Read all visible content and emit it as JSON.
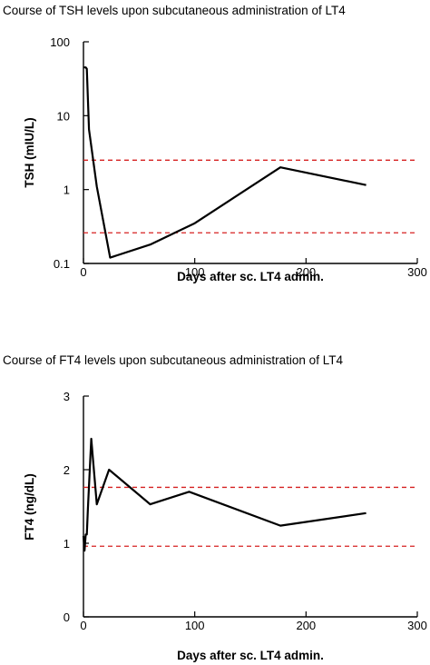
{
  "chart_data": [
    {
      "type": "line",
      "title": "Course of TSH levels upon subcutaneous administration of LT4",
      "xlabel": "Days after sc. LT4 admin.",
      "ylabel": "TSH (mIU/L)",
      "yscale": "log",
      "xlim": [
        0,
        300
      ],
      "ylim": [
        0.1,
        100
      ],
      "xticks": [
        0,
        100,
        200,
        300
      ],
      "xtick_labels": [
        "0",
        "100",
        "200",
        "300"
      ],
      "yticks": [
        0.1,
        1,
        10,
        100
      ],
      "ytick_labels": [
        "0.1",
        "1",
        "10",
        "100"
      ],
      "grid": false,
      "series": [
        {
          "color": "#000000",
          "style": "solid",
          "x": [
            0,
            2,
            3,
            5,
            12,
            24,
            60,
            100,
            177,
            254
          ],
          "y": [
            45,
            45,
            43,
            6.5,
            1.1,
            0.12,
            0.18,
            0.35,
            2.0,
            1.15
          ]
        }
      ],
      "reference_lines": [
        {
          "y": 2.5,
          "color": "#d62020",
          "style": "dashed"
        },
        {
          "y": 0.26,
          "color": "#d62020",
          "style": "dashed"
        }
      ]
    },
    {
      "type": "line",
      "title": "Course of FT4 levels upon subcutaneous administration of LT4",
      "xlabel": "Days after sc. LT4 admin.",
      "ylabel": "FT4 (ng/dL)",
      "yscale": "linear",
      "xlim": [
        0,
        300
      ],
      "ylim": [
        0,
        3
      ],
      "xticks": [
        0,
        100,
        200,
        300
      ],
      "xtick_labels": [
        "0",
        "100",
        "200",
        "300"
      ],
      "yticks": [
        0,
        1,
        2,
        3
      ],
      "ytick_labels": [
        "0",
        "1",
        "2",
        "3"
      ],
      "grid": false,
      "series": [
        {
          "color": "#000000",
          "style": "solid",
          "x": [
            0,
            1,
            2,
            3,
            4,
            7,
            12,
            23,
            60,
            95,
            177,
            254
          ],
          "y": [
            1.1,
            0.9,
            1.12,
            1.12,
            1.47,
            2.42,
            1.53,
            2.0,
            1.53,
            1.7,
            1.24,
            1.41
          ]
        }
      ],
      "reference_lines": [
        {
          "y": 1.76,
          "color": "#d62020",
          "style": "dashed"
        },
        {
          "y": 0.96,
          "color": "#d62020",
          "style": "dashed"
        }
      ]
    }
  ]
}
